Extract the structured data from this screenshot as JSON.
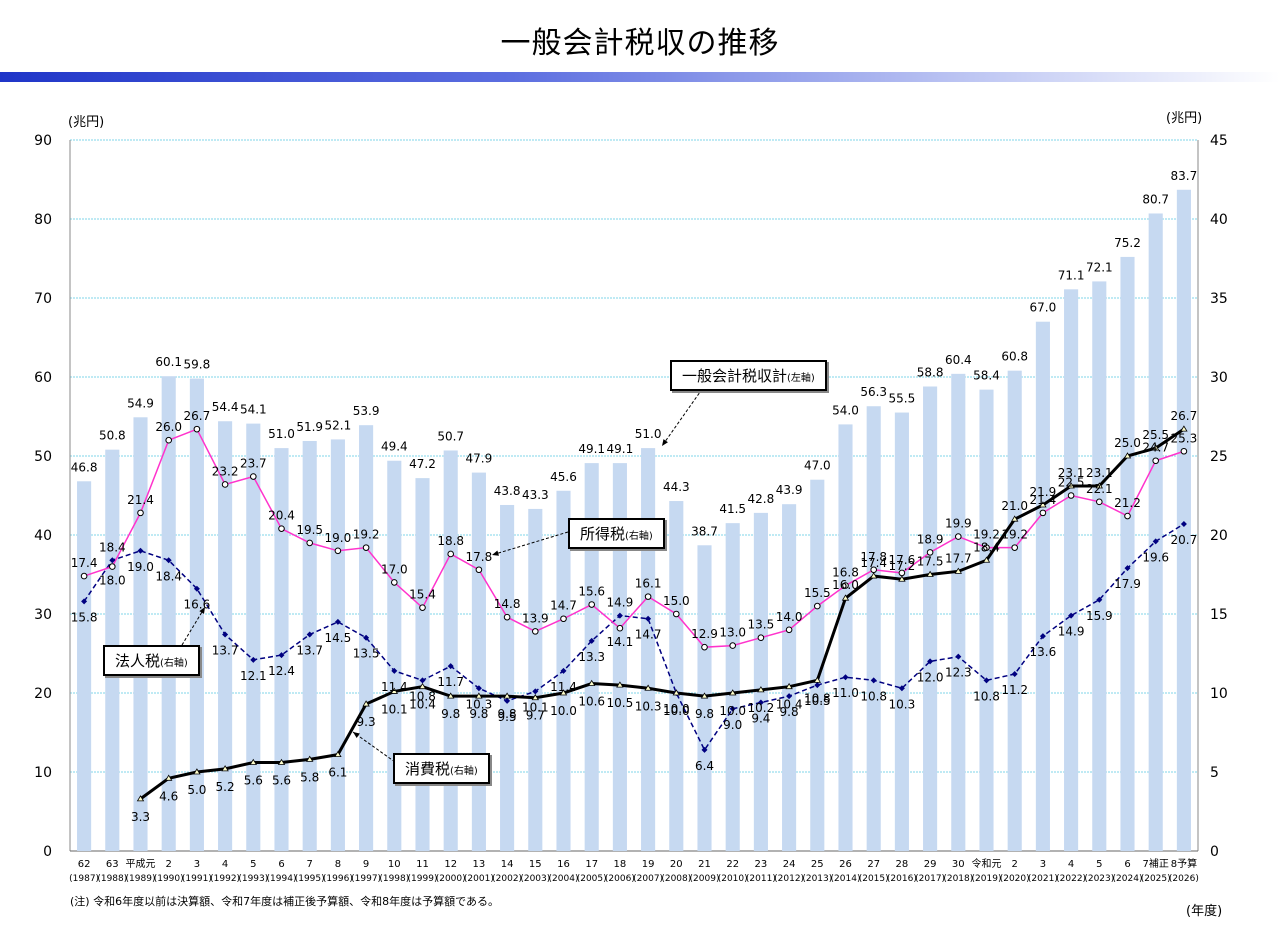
{
  "page": {
    "title": "一般会計税収の推移",
    "note": "(注) 令和6年度以前は決算額、令和7年度は補正後予算額、令和8年度は予算額である。",
    "left_unit": "(兆円)",
    "right_unit": "(兆円)",
    "x_unit": "(年度)"
  },
  "callouts": {
    "total": {
      "text": "一般会計税収計",
      "axis": "(左軸)"
    },
    "income": {
      "text": "所得税",
      "axis": "(右軸)"
    },
    "corporate": {
      "text": "法人税",
      "axis": "(右軸)"
    },
    "consumption": {
      "text": "消費税",
      "axis": "(右軸)"
    }
  },
  "colors": {
    "bars": "#c6d9f1",
    "total_line": "#000000",
    "income_line": "#ff33cc",
    "corporate_line": "#000080",
    "consumption_line": "#000000",
    "gridline": "#7fd4e8"
  },
  "chart_data": {
    "type": "bar",
    "categories": [
      "62",
      "63",
      "平成元",
      "2",
      "3",
      "4",
      "5",
      "6",
      "7",
      "8",
      "9",
      "10",
      "11",
      "12",
      "13",
      "14",
      "15",
      "16",
      "17",
      "18",
      "19",
      "20",
      "21",
      "22",
      "23",
      "24",
      "25",
      "26",
      "27",
      "28",
      "29",
      "30",
      "令和元",
      "2",
      "3",
      "4",
      "5",
      "6",
      "7補正",
      "8予算"
    ],
    "categories_sub": [
      "(1987)",
      "(1988)",
      "(1989)",
      "(1990)",
      "(1991)",
      "(1992)",
      "(1993)",
      "(1994)",
      "(1995)",
      "(1996)",
      "(1997)",
      "(1998)",
      "(1999)",
      "(2000)",
      "(2001)",
      "(2002)",
      "(2003)",
      "(2004)",
      "(2005)",
      "(2006)",
      "(2007)",
      "(2008)",
      "(2009)",
      "(2010)",
      "(2011)",
      "(2012)",
      "(2013)",
      "(2014)",
      "(2015)",
      "(2016)",
      "(2017)",
      "(2018)",
      "(2019)",
      "(2020)",
      "(2021)",
      "(2022)",
      "(2023)",
      "(2024)",
      "(2025)",
      "(2026)"
    ],
    "ylim_left": [
      0,
      90
    ],
    "ylim_right": [
      0,
      45
    ],
    "yticks_left": [
      0,
      10,
      20,
      30,
      40,
      50,
      60,
      70,
      80,
      90
    ],
    "yticks_right": [
      0,
      5,
      10,
      15,
      20,
      25,
      30,
      35,
      40,
      45
    ],
    "series": [
      {
        "name": "一般会計税収計",
        "axis": "left",
        "type": "bar",
        "values": [
          46.8,
          50.8,
          54.9,
          60.1,
          59.8,
          54.4,
          54.1,
          51.0,
          51.9,
          52.1,
          53.9,
          49.4,
          47.2,
          50.7,
          47.9,
          43.8,
          43.3,
          45.6,
          49.1,
          49.1,
          51.0,
          44.3,
          38.7,
          41.5,
          42.8,
          43.9,
          47.0,
          54.0,
          56.3,
          55.5,
          58.8,
          60.4,
          58.4,
          60.8,
          67.0,
          71.1,
          72.1,
          75.2,
          80.7,
          83.7
        ]
      },
      {
        "name": "所得税",
        "axis": "right",
        "type": "line",
        "values": [
          17.4,
          18.0,
          21.4,
          26.0,
          26.7,
          23.2,
          23.7,
          20.4,
          19.5,
          19.0,
          19.2,
          17.0,
          15.4,
          18.8,
          17.8,
          14.8,
          13.9,
          14.7,
          15.6,
          14.1,
          16.1,
          15.0,
          12.9,
          13.0,
          13.5,
          14.0,
          15.5,
          16.8,
          17.8,
          17.6,
          18.9,
          19.9,
          19.2,
          19.2,
          21.4,
          22.5,
          22.1,
          21.2,
          24.7,
          25.3
        ]
      },
      {
        "name": "法人税",
        "axis": "right",
        "type": "line",
        "values": [
          15.8,
          18.4,
          19.0,
          18.4,
          16.6,
          13.7,
          12.1,
          12.4,
          13.7,
          14.5,
          13.5,
          11.4,
          10.8,
          11.7,
          10.3,
          9.5,
          10.1,
          11.4,
          13.3,
          14.9,
          14.7,
          10.0,
          6.4,
          9.0,
          9.4,
          9.8,
          10.5,
          11.0,
          10.8,
          10.3,
          12.0,
          12.3,
          10.8,
          11.2,
          13.6,
          14.9,
          15.9,
          17.9,
          19.6,
          20.7
        ]
      },
      {
        "name": "消費税",
        "axis": "right",
        "type": "line",
        "values": [
          null,
          null,
          3.3,
          4.6,
          5.0,
          5.2,
          5.6,
          5.6,
          5.8,
          6.1,
          9.3,
          10.1,
          10.4,
          9.8,
          9.8,
          9.8,
          9.7,
          10.0,
          10.6,
          10.5,
          10.3,
          10.0,
          9.8,
          10.0,
          10.2,
          10.4,
          10.8,
          16.0,
          17.4,
          17.2,
          17.5,
          17.7,
          18.4,
          21.0,
          21.9,
          23.1,
          23.1,
          25.0,
          25.5,
          26.7
        ]
      }
    ]
  }
}
